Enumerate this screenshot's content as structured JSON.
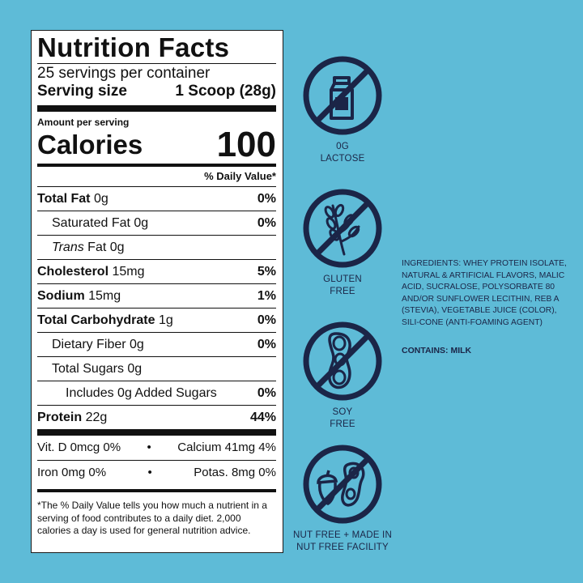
{
  "label": {
    "title": "Nutrition Facts",
    "servings": "25 servings per container",
    "serving_size_label": "Serving size",
    "serving_size_value": "1 Scoop (28g)",
    "amount_per_serving": "Amount per serving",
    "calories_label": "Calories",
    "calories_value": "100",
    "dv_header": "% Daily Value*",
    "total_fat": {
      "name": "Total Fat",
      "amount": "0g",
      "dv": "0%"
    },
    "saturated_fat": {
      "name": "Saturated Fat 0g",
      "dv": "0%"
    },
    "trans_fat": {
      "name_italic": "Trans",
      "name": " Fat 0g"
    },
    "cholesterol": {
      "name": "Cholesterol",
      "amount": "15mg",
      "dv": "5%"
    },
    "sodium": {
      "name": "Sodium",
      "amount": "15mg",
      "dv": "1%"
    },
    "total_carb": {
      "name": "Total Carbohydrate",
      "amount": "1g",
      "dv": "0%"
    },
    "fiber": {
      "name": "Dietary Fiber 0g",
      "dv": "0%"
    },
    "total_sugars": {
      "name": "Total Sugars 0g"
    },
    "added_sugars": {
      "name": "Includes 0g Added Sugars",
      "dv": "0%"
    },
    "protein": {
      "name": "Protein",
      "amount": "22g",
      "dv": "44%"
    },
    "vitamins": [
      {
        "left": "Vit. D 0mcg 0%",
        "dot": "•",
        "right": "Calcium 41mg 4%"
      },
      {
        "left": "Iron 0mg 0%",
        "dot": "•",
        "right": "Potas. 8mg 0%"
      }
    ],
    "footnote": "*The % Daily Value tells you how much a nutrient in a serving of food contributes to a daily diet. 2,000 calories a day is used for general nutrition advice."
  },
  "badges": [
    {
      "icon": "milk-carton-icon",
      "caption_1": "0G",
      "caption_2": "LACTOSE"
    },
    {
      "icon": "wheat-icon",
      "caption_1": "GLUTEN",
      "caption_2": "FREE"
    },
    {
      "icon": "soybean-icon",
      "caption_1": "SOY",
      "caption_2": "FREE"
    },
    {
      "icon": "nut-icon",
      "caption_1": "NUT FREE + MADE IN",
      "caption_2": "NUT FREE FACILITY"
    }
  ],
  "ingredients": {
    "text": "INGREDIENTS: WHEY PROTEIN ISOLATE, NATURAL & ARTIFICIAL FLAVORS, MALIC ACID, SUCRALOSE, POLYSORBATE 80 AND/OR SUNFLOWER LECITHIN, REB A (STEVIA), VEGETABLE JUICE (COLOR), SILI-CONE (ANTI-FOAMING AGENT)",
    "contains": "CONTAINS: MILK"
  },
  "colors": {
    "background": "#5ebbd7",
    "icon_navy": "#1b2547",
    "label_bg": "#ffffff"
  }
}
